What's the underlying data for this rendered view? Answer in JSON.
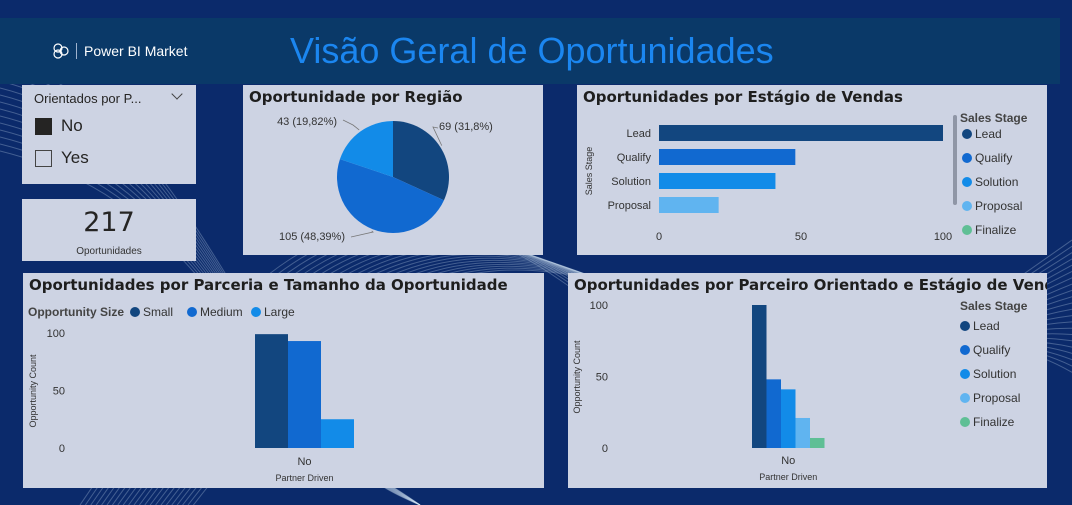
{
  "header": {
    "brand": "Power BI Market",
    "title": "Visão Geral de Oportunidades"
  },
  "slicer": {
    "title": "Orientados por P...",
    "options": [
      {
        "label": "No",
        "checked": true
      },
      {
        "label": "Yes",
        "checked": false
      }
    ]
  },
  "card": {
    "value": "217",
    "label": "Oportunidades"
  },
  "colors": {
    "lead": "#12467f",
    "qualify": "#1169d0",
    "solution": "#128be8",
    "proposal": "#60b4f0",
    "finalize": "#5fbf95",
    "panel": "#cdd3e3"
  },
  "chart_data": [
    {
      "type": "pie",
      "title": "Oportunidade por Região",
      "slices": [
        {
          "value": 69,
          "label": "69 (31,8%)",
          "color": "#12467f"
        },
        {
          "value": 105,
          "label": "105 (48,39%)",
          "color": "#1169d0"
        },
        {
          "value": 43,
          "label": "43 (19,82%)",
          "color": "#128be8"
        }
      ]
    },
    {
      "type": "bar",
      "orientation": "horizontal",
      "title": "Oportunidades por Estágio de Vendas",
      "ylabel": "Sales Stage",
      "categories": [
        "Lead",
        "Qualify",
        "Solution",
        "Proposal"
      ],
      "values": [
        100,
        48,
        41,
        21
      ],
      "colors": [
        "#12467f",
        "#1169d0",
        "#128be8",
        "#60b4f0"
      ],
      "xlim": [
        0,
        100
      ],
      "xticks": [
        "0",
        "50",
        "100"
      ],
      "legend_title": "Sales Stage",
      "legend": [
        "Lead",
        "Qualify",
        "Solution",
        "Proposal",
        "Finalize"
      ],
      "legend_colors": [
        "#12467f",
        "#1169d0",
        "#128be8",
        "#60b4f0",
        "#5fbf95"
      ],
      "legend_position": "right"
    },
    {
      "type": "bar",
      "title": "Oportunidades por Parceria e Tamanho da Oportunidade",
      "legend_title": "Opportunity Size",
      "legend_position": "top-left",
      "categories": [
        "No"
      ],
      "xlabel": "Partner Driven",
      "ylabel": "Opportunity Count",
      "ylim": [
        0,
        100
      ],
      "yticks": [
        "0",
        "50",
        "100"
      ],
      "series": [
        {
          "name": "Small",
          "values": [
            99
          ],
          "color": "#12467f"
        },
        {
          "name": "Medium",
          "values": [
            93
          ],
          "color": "#1169d0"
        },
        {
          "name": "Large",
          "values": [
            25
          ],
          "color": "#128be8"
        }
      ]
    },
    {
      "type": "bar",
      "title": "Oportunidades por Parceiro Orientado e Estágio de Vendas",
      "legend_title": "Sales Stage",
      "legend_position": "right",
      "categories": [
        "No"
      ],
      "xlabel": "Partner Driven",
      "ylabel": "Opportunity Count",
      "ylim": [
        0,
        100
      ],
      "yticks": [
        "0",
        "50",
        "100"
      ],
      "series": [
        {
          "name": "Lead",
          "values": [
            100
          ],
          "color": "#12467f"
        },
        {
          "name": "Qualify",
          "values": [
            48
          ],
          "color": "#1169d0"
        },
        {
          "name": "Solution",
          "values": [
            41
          ],
          "color": "#128be8"
        },
        {
          "name": "Proposal",
          "values": [
            21
          ],
          "color": "#60b4f0"
        },
        {
          "name": "Finalize",
          "values": [
            7
          ],
          "color": "#5fbf95"
        }
      ]
    }
  ]
}
